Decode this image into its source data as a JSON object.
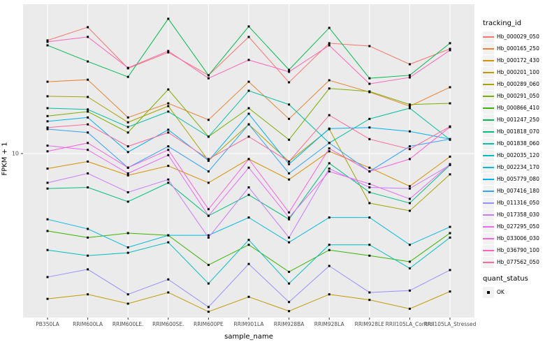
{
  "figure": {
    "panel_bg": "#EBEBEB",
    "grid_color": "#FFFFFF",
    "legend_key_bg": "#F2F2F2",
    "tick_label_color": "#4D4D4D",
    "point_color": "#000000"
  },
  "chart_data": {
    "type": "line",
    "title": "",
    "xlabel": "sample_name",
    "ylabel": "FPKM + 1",
    "y_scale": "log10",
    "y_ticks": [
      10
    ],
    "ylim": [
      1.1,
      72
    ],
    "grid": "major-only",
    "legend_position": "right",
    "categories": [
      "PB350LA",
      "RRIM600LA",
      "RRIM600LE.",
      "RRIM600SE.",
      "RRIM600PE",
      "RRIM901LA",
      "RRIM928BA",
      "RRIM928LA",
      "RRIM928LE",
      "RRII105LA_Control",
      "RRII105LA_Stressed"
    ],
    "series": [
      {
        "name": "Hb_000029_050",
        "color": "#F8766D",
        "values": [
          44.5,
          53.0,
          30.8,
          38.0,
          28.1,
          46.6,
          25.6,
          42.9,
          41.3,
          32.5,
          39.8
        ]
      },
      {
        "name": "Hb_000165_250",
        "color": "#EA8331",
        "values": [
          25.8,
          26.5,
          16.1,
          19.4,
          15.6,
          25.8,
          15.8,
          26.3,
          22.5,
          18.7,
          24.0
        ]
      },
      {
        "name": "Hb_000172_430",
        "color": "#D89000",
        "values": [
          8.2,
          9.0,
          7.5,
          8.5,
          6.8,
          9.3,
          7.1,
          10.3,
          8.3,
          6.5,
          9.6
        ]
      },
      {
        "name": "Hb_000201_100",
        "color": "#C09B00",
        "values": [
          1.47,
          1.56,
          1.38,
          1.6,
          1.24,
          1.51,
          1.25,
          1.56,
          1.45,
          1.29,
          1.62
        ]
      },
      {
        "name": "Hb_000289_060",
        "color": "#A3A500",
        "values": [
          21.3,
          21.1,
          15.1,
          18.7,
          9.1,
          14.7,
          9.0,
          13.8,
          5.2,
          4.7,
          7.6
        ]
      },
      {
        "name": "Hb_000291_050",
        "color": "#7CAE00",
        "values": [
          16.4,
          17.4,
          13.2,
          23.3,
          12.5,
          18.2,
          12.0,
          23.6,
          22.7,
          19.1,
          19.4
        ]
      },
      {
        "name": "Hb_000866_410",
        "color": "#39B600",
        "values": [
          3.6,
          3.3,
          3.5,
          3.4,
          2.3,
          3.0,
          2.1,
          2.8,
          2.6,
          2.4,
          3.5
        ]
      },
      {
        "name": "Hb_001247_250",
        "color": "#00BB4E",
        "values": [
          41.7,
          33.7,
          27.5,
          59.2,
          28.1,
          53.5,
          30.2,
          52.5,
          27.0,
          28.1,
          42.9
        ]
      },
      {
        "name": "Hb_001818_070",
        "color": "#00BF7D",
        "values": [
          6.3,
          6.4,
          5.3,
          6.8,
          4.4,
          5.8,
          4.2,
          8.8,
          6.0,
          5.2,
          8.6
        ]
      },
      {
        "name": "Hb_001838_060",
        "color": "#00C1A3",
        "values": [
          18.2,
          17.9,
          14.2,
          17.4,
          12.5,
          22.9,
          19.1,
          11.5,
          15.8,
          18.2,
          12.0
        ]
      },
      {
        "name": "Hb_002035_120",
        "color": "#00BFC4",
        "values": [
          2.8,
          2.6,
          2.7,
          3.1,
          1.8,
          3.2,
          1.8,
          3.0,
          3.0,
          2.2,
          3.3
        ]
      },
      {
        "name": "Hb_002234_170",
        "color": "#00BAE0",
        "values": [
          4.2,
          3.7,
          2.9,
          3.4,
          3.4,
          4.3,
          3.1,
          4.3,
          4.3,
          3.0,
          3.8
        ]
      },
      {
        "name": "Hb_005779_080",
        "color": "#00B0F6",
        "values": [
          15.3,
          16.1,
          10.2,
          13.7,
          9.1,
          16.9,
          8.7,
          13.9,
          14.1,
          13.4,
          12.1
        ]
      },
      {
        "name": "Hb_007416_180",
        "color": "#35A2FF",
        "values": [
          13.8,
          13.2,
          8.3,
          11.0,
          7.9,
          14.7,
          7.7,
          11.5,
          7.9,
          11.0,
          12.1
        ]
      },
      {
        "name": "Hb_011316_050",
        "color": "#9590FF",
        "values": [
          1.96,
          2.17,
          1.56,
          1.9,
          1.32,
          2.33,
          1.41,
          2.27,
          1.6,
          1.64,
          2.15
        ]
      },
      {
        "name": "Hb_017358_030",
        "color": "#C77CFF",
        "values": [
          6.8,
          7.7,
          6.0,
          7.1,
          3.3,
          6.4,
          3.3,
          8.2,
          6.4,
          6.3,
          8.6
        ]
      },
      {
        "name": "Hb_027295_050",
        "color": "#E76BF3",
        "values": [
          11.1,
          10.5,
          7.7,
          9.8,
          4.4,
          8.3,
          4.3,
          7.9,
          6.7,
          5.5,
          8.7
        ]
      },
      {
        "name": "Hb_033006_030",
        "color": "#FA62DB",
        "values": [
          10.3,
          11.5,
          8.3,
          10.5,
          4.8,
          9.3,
          4.6,
          10.7,
          7.9,
          9.3,
          14.2
        ]
      },
      {
        "name": "Hb_036790_100",
        "color": "#FF62BC",
        "values": [
          43.7,
          46.6,
          31.0,
          38.7,
          27.0,
          34.4,
          29.4,
          41.7,
          25.1,
          27.3,
          39.1
        ]
      },
      {
        "name": "Hb_077562_050",
        "color": "#FF6A98",
        "values": [
          14.1,
          14.7,
          11.0,
          13.2,
          9.3,
          12.5,
          9.0,
          16.6,
          12.1,
          10.6,
          14.3
        ]
      }
    ],
    "legend": {
      "color_title": "tracking_id",
      "shape_title": "quant_status",
      "shape_entries": [
        {
          "label": "OK",
          "shape": "filled-square"
        }
      ]
    }
  }
}
